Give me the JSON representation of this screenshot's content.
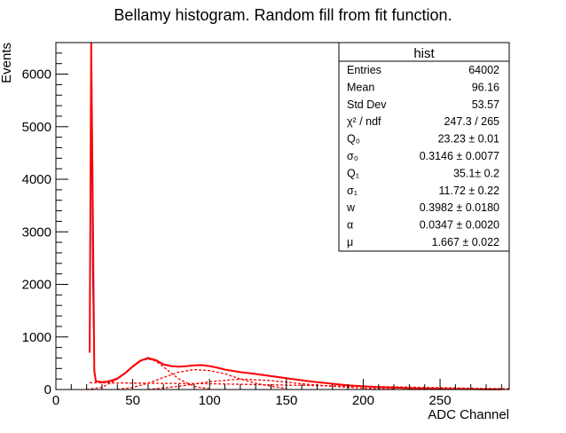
{
  "chart_data": {
    "type": "line",
    "title": "Bellamy histogram. Random fill from fit function.",
    "xlabel": "ADC Channel",
    "ylabel": "Events",
    "xlim": [
      0,
      295
    ],
    "ylim": [
      0,
      6600
    ],
    "x_ticks": [
      0,
      50,
      100,
      150,
      200,
      250
    ],
    "x_tick_labels": [
      "0",
      "50",
      "100",
      "150",
      "200",
      "250"
    ],
    "y_ticks": [
      0,
      1000,
      2000,
      3000,
      4000,
      5000,
      6000
    ],
    "y_tick_labels": [
      "0",
      "1000",
      "2000",
      "3000",
      "4000",
      "5000",
      "6000"
    ],
    "series": [
      {
        "style": "histogram",
        "color": "#0000cc",
        "x": [
          22,
          23,
          24,
          25,
          26,
          30,
          35,
          40,
          45,
          50,
          55,
          60,
          65,
          70,
          75,
          80,
          85,
          90,
          95,
          100,
          105,
          110,
          120,
          130,
          140,
          150,
          160,
          170,
          180,
          190,
          200,
          210,
          220,
          230,
          240,
          250,
          260,
          270,
          280,
          290
        ],
        "y": [
          800,
          6250,
          2000,
          400,
          160,
          130,
          150,
          200,
          300,
          430,
          540,
          610,
          550,
          470,
          440,
          430,
          440,
          460,
          470,
          450,
          420,
          380,
          330,
          300,
          260,
          220,
          180,
          140,
          110,
          80,
          60,
          45,
          35,
          25,
          20,
          15,
          10,
          8,
          5,
          3
        ]
      },
      {
        "style": "fit",
        "color": "#ff0000",
        "x": [
          22,
          23,
          24,
          25,
          26,
          30,
          35,
          40,
          45,
          50,
          55,
          60,
          65,
          70,
          75,
          80,
          85,
          90,
          95,
          100,
          105,
          110,
          120,
          130,
          140,
          150,
          160,
          170,
          180,
          190,
          200,
          210,
          220,
          230,
          240,
          250,
          260,
          270,
          280,
          290
        ],
        "y": [
          700,
          6600,
          3500,
          350,
          160,
          140,
          160,
          210,
          310,
          440,
          550,
          600,
          560,
          480,
          445,
          435,
          445,
          460,
          465,
          445,
          415,
          380,
          330,
          295,
          255,
          215,
          175,
          140,
          110,
          80,
          60,
          45,
          35,
          25,
          20,
          15,
          10,
          8,
          5,
          3
        ]
      },
      {
        "style": "component-dashed",
        "color": "#ff0000",
        "x": [
          20,
          30,
          40,
          50,
          55,
          60,
          65,
          70,
          80,
          90,
          100
        ],
        "y": [
          0,
          40,
          200,
          430,
          540,
          580,
          540,
          430,
          200,
          60,
          10
        ]
      },
      {
        "style": "component-dashed",
        "color": "#ff0000",
        "x": [
          40,
          50,
          60,
          70,
          80,
          90,
          100,
          110,
          120,
          130,
          140,
          150
        ],
        "y": [
          0,
          40,
          120,
          230,
          330,
          380,
          360,
          300,
          200,
          120,
          60,
          20
        ]
      },
      {
        "style": "component-dashed",
        "color": "#ff0000",
        "x": [
          60,
          80,
          100,
          120,
          140,
          160,
          180,
          200,
          220
        ],
        "y": [
          0,
          60,
          150,
          200,
          170,
          110,
          60,
          25,
          5
        ]
      },
      {
        "style": "component-dashed",
        "color": "#ff0000",
        "x": [
          22,
          40,
          60,
          80,
          100,
          120,
          140,
          160,
          180,
          200,
          220,
          240,
          260,
          280,
          295
        ],
        "y": [
          130,
          125,
          120,
          115,
          110,
          100,
          90,
          80,
          70,
          60,
          50,
          40,
          30,
          20,
          15
        ]
      }
    ]
  },
  "stats_box": {
    "title": "hist",
    "rows": [
      {
        "label": "Entries",
        "value": "64002"
      },
      {
        "label": "Mean",
        "value": "96.16"
      },
      {
        "label": "Std Dev",
        "value": "53.57"
      },
      {
        "label": "χ² / ndf",
        "value": "247.3 / 265"
      },
      {
        "label": "Q₀",
        "value": "23.23 ± 0.01"
      },
      {
        "label": "σ₀",
        "value": "0.3146 ± 0.0077"
      },
      {
        "label": "Q₁",
        "value": "35.1± 0.2"
      },
      {
        "label": "σ₁",
        "value": "11.72 ± 0.22"
      },
      {
        "label": "w",
        "value": "0.3982 ± 0.0180"
      },
      {
        "label": "α",
        "value": "0.0347 ± 0.0020"
      },
      {
        "label": "μ",
        "value": "1.667 ± 0.022"
      }
    ]
  }
}
